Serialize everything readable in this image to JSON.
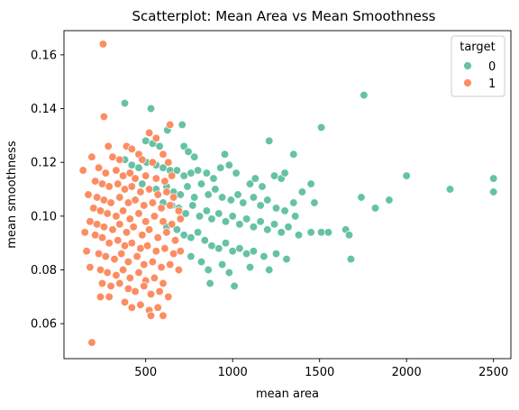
{
  "chart_data": {
    "type": "scatter",
    "title": "Scatterplot: Mean Area vs Mean Smoothness",
    "xlabel": "mean area",
    "ylabel": "mean smoothness",
    "xlim": [
      30,
      2600
    ],
    "ylim": [
      0.047,
      0.169
    ],
    "xticks": [
      500,
      1000,
      1500,
      2000,
      2500
    ],
    "yticks": [
      0.06,
      0.08,
      0.1,
      0.12,
      0.14,
      0.16
    ],
    "ytick_labels": [
      "0.06",
      "0.08",
      "0.10",
      "0.12",
      "0.14",
      "0.16"
    ],
    "grid": false,
    "legend": {
      "title": "target",
      "placement": "top-right"
    },
    "series": [
      {
        "name": "0",
        "color": "#66c2a5",
        "points": [
          [
            380,
            0.142
          ],
          [
            530,
            0.14
          ],
          [
            625,
            0.132
          ],
          [
            710,
            0.134
          ],
          [
            500,
            0.128
          ],
          [
            540,
            0.127
          ],
          [
            580,
            0.126
          ],
          [
            720,
            0.126
          ],
          [
            745,
            0.124
          ],
          [
            780,
            0.122
          ],
          [
            955,
            0.123
          ],
          [
            1210,
            0.128
          ],
          [
            1350,
            0.123
          ],
          [
            1510,
            0.133
          ],
          [
            1755,
            0.145
          ],
          [
            380,
            0.121
          ],
          [
            420,
            0.119
          ],
          [
            460,
            0.118
          ],
          [
            505,
            0.12
          ],
          [
            560,
            0.119
          ],
          [
            600,
            0.118
          ],
          [
            640,
            0.117
          ],
          [
            680,
            0.117
          ],
          [
            720,
            0.115
          ],
          [
            760,
            0.116
          ],
          [
            800,
            0.117
          ],
          [
            850,
            0.116
          ],
          [
            890,
            0.114
          ],
          [
            930,
            0.118
          ],
          [
            980,
            0.119
          ],
          [
            1020,
            0.116
          ],
          [
            1100,
            0.112
          ],
          [
            1130,
            0.114
          ],
          [
            1170,
            0.111
          ],
          [
            1240,
            0.115
          ],
          [
            1280,
            0.114
          ],
          [
            1300,
            0.116
          ],
          [
            1400,
            0.109
          ],
          [
            1450,
            0.112
          ],
          [
            1740,
            0.107
          ],
          [
            1900,
            0.106
          ],
          [
            2000,
            0.115
          ],
          [
            2250,
            0.11
          ],
          [
            2500,
            0.114
          ],
          [
            2500,
            0.109
          ],
          [
            480,
            0.112
          ],
          [
            560,
            0.11
          ],
          [
            620,
            0.111
          ],
          [
            660,
            0.109
          ],
          [
            700,
            0.108
          ],
          [
            740,
            0.111
          ],
          [
            780,
            0.107
          ],
          [
            820,
            0.112
          ],
          [
            860,
            0.108
          ],
          [
            900,
            0.11
          ],
          [
            940,
            0.107
          ],
          [
            990,
            0.106
          ],
          [
            1030,
            0.108
          ],
          [
            1060,
            0.105
          ],
          [
            1120,
            0.107
          ],
          [
            1160,
            0.104
          ],
          [
            1200,
            0.106
          ],
          [
            1250,
            0.103
          ],
          [
            1300,
            0.102
          ],
          [
            1350,
            0.105
          ],
          [
            1360,
            0.1
          ],
          [
            1470,
            0.105
          ],
          [
            1820,
            0.103
          ],
          [
            600,
            0.105
          ],
          [
            650,
            0.104
          ],
          [
            690,
            0.103
          ],
          [
            730,
            0.101
          ],
          [
            770,
            0.104
          ],
          [
            810,
            0.1
          ],
          [
            850,
            0.102
          ],
          [
            880,
            0.099
          ],
          [
            920,
            0.101
          ],
          [
            960,
            0.098
          ],
          [
            1000,
            0.1
          ],
          [
            1040,
            0.097
          ],
          [
            1080,
            0.099
          ],
          [
            1120,
            0.096
          ],
          [
            1160,
            0.098
          ],
          [
            1200,
            0.095
          ],
          [
            1240,
            0.097
          ],
          [
            1280,
            0.094
          ],
          [
            1320,
            0.096
          ],
          [
            1380,
            0.093
          ],
          [
            1450,
            0.094
          ],
          [
            1510,
            0.094
          ],
          [
            1550,
            0.094
          ],
          [
            1650,
            0.095
          ],
          [
            1670,
            0.093
          ],
          [
            620,
            0.096
          ],
          [
            680,
            0.095
          ],
          [
            720,
            0.093
          ],
          [
            760,
            0.092
          ],
          [
            800,
            0.094
          ],
          [
            840,
            0.091
          ],
          [
            880,
            0.089
          ],
          [
            920,
            0.088
          ],
          [
            960,
            0.09
          ],
          [
            1000,
            0.087
          ],
          [
            1040,
            0.088
          ],
          [
            1080,
            0.086
          ],
          [
            1120,
            0.087
          ],
          [
            1180,
            0.085
          ],
          [
            1250,
            0.086
          ],
          [
            1310,
            0.084
          ],
          [
            1680,
            0.084
          ],
          [
            700,
            0.087
          ],
          [
            760,
            0.085
          ],
          [
            820,
            0.083
          ],
          [
            860,
            0.08
          ],
          [
            940,
            0.082
          ],
          [
            980,
            0.079
          ],
          [
            1100,
            0.081
          ],
          [
            1210,
            0.08
          ],
          [
            1010,
            0.074
          ],
          [
            870,
            0.075
          ]
        ]
      },
      {
        "name": "1",
        "color": "#fc8d62",
        "points": [
          [
            255,
            0.164
          ],
          [
            260,
            0.137
          ],
          [
            640,
            0.134
          ],
          [
            520,
            0.131
          ],
          [
            560,
            0.129
          ],
          [
            285,
            0.126
          ],
          [
            390,
            0.126
          ],
          [
            420,
            0.125
          ],
          [
            460,
            0.123
          ],
          [
            600,
            0.123
          ],
          [
            190,
            0.122
          ],
          [
            310,
            0.122
          ],
          [
            350,
            0.121
          ],
          [
            480,
            0.121
          ],
          [
            540,
            0.12
          ],
          [
            630,
            0.12
          ],
          [
            140,
            0.117
          ],
          [
            230,
            0.118
          ],
          [
            270,
            0.116
          ],
          [
            330,
            0.117
          ],
          [
            370,
            0.115
          ],
          [
            410,
            0.116
          ],
          [
            440,
            0.114
          ],
          [
            500,
            0.115
          ],
          [
            560,
            0.114
          ],
          [
            610,
            0.113
          ],
          [
            650,
            0.115
          ],
          [
            210,
            0.113
          ],
          [
            250,
            0.112
          ],
          [
            290,
            0.111
          ],
          [
            340,
            0.112
          ],
          [
            380,
            0.11
          ],
          [
            420,
            0.111
          ],
          [
            470,
            0.109
          ],
          [
            520,
            0.11
          ],
          [
            570,
            0.108
          ],
          [
            620,
            0.109
          ],
          [
            660,
            0.107
          ],
          [
            170,
            0.108
          ],
          [
            220,
            0.107
          ],
          [
            260,
            0.106
          ],
          [
            300,
            0.105
          ],
          [
            350,
            0.107
          ],
          [
            400,
            0.105
          ],
          [
            440,
            0.106
          ],
          [
            490,
            0.104
          ],
          [
            540,
            0.105
          ],
          [
            590,
            0.103
          ],
          [
            640,
            0.104
          ],
          [
            690,
            0.102
          ],
          [
            200,
            0.103
          ],
          [
            240,
            0.102
          ],
          [
            280,
            0.101
          ],
          [
            330,
            0.1
          ],
          [
            370,
            0.102
          ],
          [
            410,
            0.099
          ],
          [
            460,
            0.101
          ],
          [
            500,
            0.098
          ],
          [
            550,
            0.1
          ],
          [
            600,
            0.098
          ],
          [
            650,
            0.097
          ],
          [
            700,
            0.099
          ],
          [
            180,
            0.098
          ],
          [
            220,
            0.097
          ],
          [
            260,
            0.096
          ],
          [
            310,
            0.095
          ],
          [
            350,
            0.097
          ],
          [
            390,
            0.094
          ],
          [
            430,
            0.096
          ],
          [
            480,
            0.093
          ],
          [
            520,
            0.095
          ],
          [
            570,
            0.092
          ],
          [
            620,
            0.094
          ],
          [
            670,
            0.091
          ],
          [
            150,
            0.094
          ],
          [
            210,
            0.093
          ],
          [
            250,
            0.092
          ],
          [
            290,
            0.09
          ],
          [
            340,
            0.091
          ],
          [
            380,
            0.089
          ],
          [
            420,
            0.09
          ],
          [
            470,
            0.088
          ],
          [
            510,
            0.089
          ],
          [
            560,
            0.087
          ],
          [
            610,
            0.088
          ],
          [
            660,
            0.086
          ],
          [
            700,
            0.087
          ],
          [
            160,
            0.087
          ],
          [
            230,
            0.086
          ],
          [
            270,
            0.085
          ],
          [
            320,
            0.084
          ],
          [
            360,
            0.086
          ],
          [
            400,
            0.083
          ],
          [
            450,
            0.085
          ],
          [
            490,
            0.082
          ],
          [
            540,
            0.083
          ],
          [
            590,
            0.081
          ],
          [
            640,
            0.082
          ],
          [
            690,
            0.08
          ],
          [
            180,
            0.081
          ],
          [
            240,
            0.08
          ],
          [
            280,
            0.079
          ],
          [
            330,
            0.078
          ],
          [
            370,
            0.08
          ],
          [
            410,
            0.077
          ],
          [
            460,
            0.079
          ],
          [
            500,
            0.076
          ],
          [
            550,
            0.077
          ],
          [
            600,
            0.075
          ],
          [
            250,
            0.075
          ],
          [
            300,
            0.074
          ],
          [
            350,
            0.075
          ],
          [
            400,
            0.073
          ],
          [
            440,
            0.072
          ],
          [
            490,
            0.074
          ],
          [
            530,
            0.071
          ],
          [
            580,
            0.072
          ],
          [
            630,
            0.07
          ],
          [
            240,
            0.07
          ],
          [
            290,
            0.07
          ],
          [
            380,
            0.068
          ],
          [
            420,
            0.066
          ],
          [
            470,
            0.067
          ],
          [
            520,
            0.065
          ],
          [
            570,
            0.066
          ],
          [
            600,
            0.063
          ],
          [
            530,
            0.063
          ],
          [
            190,
            0.053
          ]
        ]
      }
    ]
  }
}
